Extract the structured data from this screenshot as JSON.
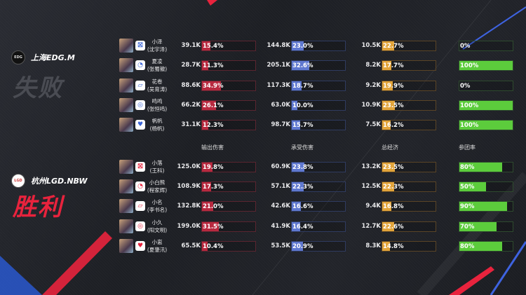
{
  "colors": {
    "damage": "#b8293f",
    "tank": "#5f78d0",
    "gold": "#e2a43a",
    "participation": "#5ccc3c",
    "win": "#e8233d",
    "lose": "#4a4c53"
  },
  "headers": {
    "damage": "输出伤害",
    "tank": "承受伤害",
    "gold": "总经济",
    "participation": "参团率"
  },
  "teams": [
    {
      "name": "上海EDG.M",
      "logo_text": "EDG",
      "result": "失败",
      "side": "blue",
      "players": [
        {
          "name": "小泽",
          "real_name": "(沈宇泽)",
          "role_icon": "jungle-icon",
          "damage": "39.1K",
          "damage_pct": 15.4,
          "tank": "144.8K",
          "tank_pct": 23.0,
          "gold": "10.5K",
          "gold_pct": 22.7,
          "participation": 0
        },
        {
          "name": "夏凌",
          "real_name": "(张蜀徽)",
          "role_icon": "mid-icon",
          "damage": "28.7K",
          "damage_pct": 11.3,
          "tank": "205.1K",
          "tank_pct": 32.6,
          "gold": "8.2K",
          "gold_pct": 17.7,
          "participation": 100
        },
        {
          "name": "花卷",
          "real_name": "(吴育涛)",
          "role_icon": "clash-lane-icon",
          "damage": "88.6K",
          "damage_pct": 34.9,
          "tank": "117.3K",
          "tank_pct": 18.7,
          "gold": "9.2K",
          "gold_pct": 19.9,
          "participation": 0
        },
        {
          "name": "鸣鸣",
          "real_name": "(张恒鸣)",
          "role_icon": "farm-lane-icon",
          "damage": "66.2K",
          "damage_pct": 26.1,
          "tank": "63.0K",
          "tank_pct": 10.0,
          "gold": "10.9K",
          "gold_pct": 23.5,
          "participation": 100
        },
        {
          "name": "帆帆",
          "real_name": "(杨帆)",
          "role_icon": "support-icon",
          "damage": "31.1K",
          "damage_pct": 12.3,
          "tank": "98.7K",
          "tank_pct": 15.7,
          "gold": "7.5K",
          "gold_pct": 16.2,
          "participation": 100
        }
      ]
    },
    {
      "name": "杭州LGD.NBW",
      "logo_text": "LGD",
      "result": "胜利",
      "side": "red",
      "players": [
        {
          "name": "小落",
          "real_name": "(王科)",
          "role_icon": "jungle-icon",
          "damage": "125.0K",
          "damage_pct": 19.8,
          "tank": "60.9K",
          "tank_pct": 23.8,
          "gold": "13.2K",
          "gold_pct": 23.5,
          "participation": 80
        },
        {
          "name": "小白熊",
          "real_name": "(程家辉)",
          "role_icon": "mid-icon",
          "damage": "108.9K",
          "damage_pct": 17.3,
          "tank": "57.1K",
          "tank_pct": 22.3,
          "gold": "12.5K",
          "gold_pct": 22.3,
          "participation": 50
        },
        {
          "name": "小名",
          "real_name": "(李书名)",
          "role_icon": "clash-lane-icon",
          "damage": "132.8K",
          "damage_pct": 21.0,
          "tank": "42.6K",
          "tank_pct": 16.6,
          "gold": "9.4K",
          "gold_pct": 16.8,
          "participation": 90
        },
        {
          "name": "小久",
          "real_name": "(阳文明)",
          "role_icon": "farm-lane-icon",
          "damage": "199.0K",
          "damage_pct": 31.5,
          "tank": "41.9K",
          "tank_pct": 16.4,
          "gold": "12.7K",
          "gold_pct": 22.6,
          "participation": 70
        },
        {
          "name": "小崽",
          "real_name": "(夏肇汛)",
          "role_icon": "support-icon",
          "damage": "65.5K",
          "damage_pct": 10.4,
          "tank": "53.5K",
          "tank_pct": 20.9,
          "gold": "8.3K",
          "gold_pct": 14.8,
          "participation": 80
        }
      ]
    }
  ]
}
